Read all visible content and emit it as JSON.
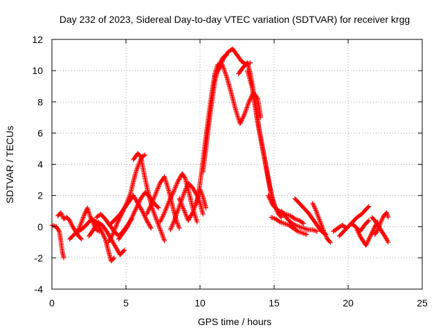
{
  "chart_data": {
    "type": "scatter",
    "title": "Day 232 of 2023, Sidereal Day-to-day VTEC variation (SDTVAR) for receiver krgg",
    "xlabel": "GPS time / hours",
    "ylabel": "SDTVAR / TECUs",
    "xlim": [
      0,
      25
    ],
    "ylim": [
      -4,
      12
    ],
    "xticks": [
      0,
      5,
      10,
      15,
      20,
      25
    ],
    "yticks": [
      -4,
      -2,
      0,
      2,
      4,
      6,
      8,
      10,
      12
    ],
    "grid": true,
    "marker": "+",
    "series_color": "#ff0000",
    "series": [
      {
        "name": "SDTVAR",
        "tracks": [
          [
            [
              0.0,
              0.1
            ],
            [
              0.3,
              0.0
            ],
            [
              0.5,
              -0.3
            ],
            [
              0.6,
              -0.9
            ],
            [
              0.7,
              -1.6
            ],
            [
              0.8,
              -2.0
            ]
          ],
          [
            [
              0.4,
              0.7
            ],
            [
              0.6,
              0.9
            ],
            [
              0.8,
              0.5
            ],
            [
              1.0,
              0.6
            ],
            [
              1.2,
              0.4
            ],
            [
              1.4,
              0.0
            ],
            [
              1.6,
              -0.3
            ],
            [
              1.8,
              -0.6
            ],
            [
              2.0,
              -0.8
            ]
          ],
          [
            [
              1.2,
              -0.8
            ],
            [
              1.5,
              -0.5
            ],
            [
              1.8,
              -0.2
            ],
            [
              2.0,
              0.3
            ],
            [
              2.2,
              0.8
            ],
            [
              2.4,
              1.2
            ],
            [
              2.6,
              0.6
            ],
            [
              2.8,
              0.2
            ],
            [
              3.0,
              -0.2
            ],
            [
              3.2,
              -0.3
            ]
          ],
          [
            [
              1.8,
              -0.3
            ],
            [
              2.1,
              -0.1
            ],
            [
              2.4,
              0.2
            ],
            [
              2.7,
              0.5
            ],
            [
              3.0,
              0.3
            ],
            [
              3.3,
              -0.2
            ],
            [
              3.6,
              -0.8
            ],
            [
              3.8,
              -1.5
            ],
            [
              4.0,
              -2.2
            ],
            [
              4.2,
              -2.0
            ]
          ],
          [
            [
              2.5,
              -0.6
            ],
            [
              2.8,
              -0.2
            ],
            [
              3.1,
              0.3
            ],
            [
              3.4,
              0.1
            ],
            [
              3.7,
              -0.3
            ],
            [
              4.0,
              -0.8
            ],
            [
              4.3,
              -1.3
            ],
            [
              4.6,
              -1.8
            ],
            [
              4.9,
              -1.5
            ]
          ],
          [
            [
              3.0,
              0.6
            ],
            [
              3.3,
              0.8
            ],
            [
              3.6,
              0.5
            ],
            [
              3.9,
              0.1
            ],
            [
              4.2,
              -0.3
            ],
            [
              4.5,
              -0.6
            ],
            [
              4.8,
              -0.3
            ],
            [
              5.1,
              0.1
            ],
            [
              5.4,
              0.5
            ]
          ],
          [
            [
              3.8,
              -1.0
            ],
            [
              4.1,
              -0.5
            ],
            [
              4.4,
              0.2
            ],
            [
              4.7,
              0.8
            ],
            [
              5.0,
              1.4
            ],
            [
              5.3,
              2.1
            ],
            [
              5.5,
              2.9
            ],
            [
              5.7,
              3.6
            ],
            [
              5.9,
              4.1
            ],
            [
              6.1,
              4.5
            ],
            [
              6.3,
              4.6
            ]
          ],
          [
            [
              4.0,
              0.2
            ],
            [
              4.3,
              0.5
            ],
            [
              4.6,
              0.8
            ],
            [
              4.9,
              1.2
            ],
            [
              5.2,
              1.6
            ],
            [
              5.5,
              2.0
            ],
            [
              5.8,
              1.5
            ],
            [
              6.1,
              1.0
            ],
            [
              6.4,
              0.4
            ],
            [
              6.7,
              -0.1
            ]
          ],
          [
            [
              4.5,
              -0.8
            ],
            [
              4.8,
              -0.4
            ],
            [
              5.1,
              0.0
            ],
            [
              5.4,
              0.6
            ],
            [
              5.7,
              1.2
            ],
            [
              6.0,
              1.8
            ],
            [
              6.3,
              2.2
            ],
            [
              6.6,
              1.9
            ],
            [
              6.9,
              1.5
            ],
            [
              7.2,
              1.2
            ]
          ],
          [
            [
              5.5,
              4.3
            ],
            [
              5.8,
              4.7
            ],
            [
              6.0,
              4.5
            ],
            [
              6.2,
              3.5
            ],
            [
              6.4,
              2.6
            ],
            [
              6.6,
              1.8
            ],
            [
              6.8,
              1.1
            ],
            [
              7.0,
              0.6
            ],
            [
              7.2,
              0.1
            ],
            [
              7.4,
              -0.4
            ],
            [
              7.6,
              -0.9
            ]
          ],
          [
            [
              6.4,
              0.8
            ],
            [
              6.7,
              1.4
            ],
            [
              7.0,
              2.1
            ],
            [
              7.3,
              2.8
            ],
            [
              7.6,
              3.2
            ],
            [
              7.8,
              2.6
            ],
            [
              8.0,
              1.9
            ],
            [
              8.2,
              1.1
            ],
            [
              8.4,
              0.4
            ],
            [
              8.6,
              -0.1
            ]
          ],
          [
            [
              7.3,
              0.3
            ],
            [
              7.6,
              0.9
            ],
            [
              7.9,
              1.6
            ],
            [
              8.2,
              2.2
            ],
            [
              8.5,
              2.9
            ],
            [
              8.8,
              3.4
            ],
            [
              9.0,
              3.1
            ],
            [
              9.2,
              2.4
            ],
            [
              9.4,
              1.6
            ],
            [
              9.6,
              0.9
            ],
            [
              9.8,
              0.3
            ]
          ],
          [
            [
              8.0,
              -0.2
            ],
            [
              8.3,
              0.5
            ],
            [
              8.6,
              1.3
            ],
            [
              8.9,
              2.1
            ],
            [
              9.2,
              2.8
            ],
            [
              9.5,
              2.5
            ],
            [
              9.8,
              2.0
            ],
            [
              10.0,
              1.5
            ],
            [
              10.2,
              0.8
            ]
          ],
          [
            [
              8.6,
              1.8
            ],
            [
              8.9,
              1.1
            ],
            [
              9.2,
              0.4
            ],
            [
              9.5,
              0.9
            ],
            [
              9.8,
              1.7
            ],
            [
              10.0,
              2.4
            ],
            [
              10.2,
              1.9
            ],
            [
              10.4,
              1.2
            ]
          ],
          [
            [
              9.8,
              1.5
            ],
            [
              10.0,
              2.8
            ],
            [
              10.2,
              4.2
            ],
            [
              10.4,
              5.8
            ],
            [
              10.6,
              7.2
            ],
            [
              10.8,
              8.6
            ],
            [
              11.0,
              9.8
            ],
            [
              11.2,
              10.4
            ],
            [
              11.4,
              10.2
            ]
          ],
          [
            [
              10.2,
              3.5
            ],
            [
              10.4,
              5.0
            ],
            [
              10.6,
              6.6
            ],
            [
              10.8,
              8.0
            ],
            [
              11.0,
              9.3
            ],
            [
              11.2,
              10.1
            ],
            [
              11.4,
              10.6
            ],
            [
              11.6,
              10.9
            ],
            [
              11.8,
              11.0
            ]
          ],
          [
            [
              11.0,
              9.6
            ],
            [
              11.3,
              10.2
            ],
            [
              11.6,
              10.8
            ],
            [
              11.9,
              11.2
            ],
            [
              12.2,
              11.4
            ],
            [
              12.5,
              11.0
            ],
            [
              12.8,
              10.6
            ],
            [
              13.1,
              10.4
            ],
            [
              13.4,
              10.5
            ]
          ],
          [
            [
              11.5,
              10.4
            ],
            [
              11.8,
              9.6
            ],
            [
              12.1,
              8.6
            ],
            [
              12.4,
              7.5
            ],
            [
              12.7,
              6.6
            ],
            [
              13.0,
              7.2
            ],
            [
              13.3,
              8.0
            ],
            [
              13.6,
              8.6
            ],
            [
              13.9,
              8.2
            ],
            [
              14.1,
              7.0
            ]
          ],
          [
            [
              12.6,
              9.8
            ],
            [
              12.9,
              10.2
            ],
            [
              13.2,
              10.5
            ],
            [
              13.4,
              9.8
            ],
            [
              13.6,
              8.7
            ],
            [
              13.8,
              7.5
            ],
            [
              14.0,
              6.2
            ],
            [
              14.2,
              5.2
            ],
            [
              14.4,
              4.2
            ],
            [
              14.6,
              3.1
            ],
            [
              14.8,
              2.1
            ],
            [
              15.0,
              1.3
            ]
          ],
          [
            [
              13.2,
              10.0
            ],
            [
              13.5,
              9.0
            ],
            [
              13.7,
              7.8
            ],
            [
              13.9,
              6.6
            ],
            [
              14.1,
              5.6
            ],
            [
              14.3,
              4.6
            ],
            [
              14.5,
              3.6
            ],
            [
              14.7,
              2.6
            ],
            [
              14.9,
              1.8
            ],
            [
              15.1,
              1.2
            ],
            [
              15.3,
              0.8
            ],
            [
              15.5,
              0.6
            ]
          ],
          [
            [
              14.6,
              2.0
            ],
            [
              14.9,
              1.4
            ],
            [
              15.2,
              1.1
            ],
            [
              15.5,
              0.9
            ],
            [
              15.8,
              0.8
            ],
            [
              16.1,
              0.7
            ],
            [
              16.4,
              0.5
            ],
            [
              16.7,
              0.4
            ],
            [
              17.0,
              0.2
            ]
          ],
          [
            [
              14.8,
              0.6
            ],
            [
              15.1,
              0.5
            ],
            [
              15.4,
              0.3
            ],
            [
              15.7,
              0.2
            ],
            [
              16.0,
              0.1
            ],
            [
              16.3,
              -0.1
            ],
            [
              16.6,
              -0.3
            ],
            [
              16.9,
              -0.4
            ],
            [
              17.2,
              -0.5
            ]
          ],
          [
            [
              15.5,
              1.0
            ],
            [
              15.8,
              0.6
            ],
            [
              16.1,
              0.3
            ],
            [
              16.4,
              0.1
            ],
            [
              16.7,
              0.0
            ],
            [
              17.0,
              -0.1
            ],
            [
              17.3,
              -0.2
            ],
            [
              17.6,
              -0.2
            ],
            [
              17.9,
              -0.3
            ]
          ],
          [
            [
              16.4,
              1.8
            ],
            [
              16.7,
              1.5
            ],
            [
              17.0,
              1.2
            ],
            [
              17.3,
              0.9
            ],
            [
              17.6,
              0.5
            ],
            [
              17.9,
              0.1
            ],
            [
              18.2,
              -0.3
            ],
            [
              18.5,
              -0.5
            ]
          ],
          [
            [
              17.6,
              1.5
            ],
            [
              17.8,
              1.1
            ],
            [
              18.0,
              0.6
            ],
            [
              18.2,
              0.1
            ],
            [
              18.4,
              -0.4
            ],
            [
              18.6,
              -0.8
            ],
            [
              18.8,
              -1.0
            ]
          ],
          [
            [
              19.0,
              -0.3
            ],
            [
              19.3,
              -0.1
            ],
            [
              19.6,
              0.1
            ],
            [
              19.9,
              -0.1
            ],
            [
              20.2,
              0.2
            ],
            [
              20.5,
              0.0
            ],
            [
              20.8,
              -0.3
            ],
            [
              21.1,
              0.1
            ],
            [
              21.4,
              0.4
            ]
          ],
          [
            [
              19.4,
              -0.6
            ],
            [
              19.7,
              -0.3
            ],
            [
              20.0,
              0.0
            ],
            [
              20.3,
              0.3
            ],
            [
              20.6,
              0.6
            ],
            [
              20.9,
              0.8
            ],
            [
              21.2,
              1.1
            ],
            [
              21.4,
              1.3
            ]
          ],
          [
            [
              20.6,
              -0.2
            ],
            [
              20.8,
              -0.6
            ],
            [
              21.0,
              -0.9
            ],
            [
              21.2,
              -1.2
            ],
            [
              21.4,
              -0.8
            ],
            [
              21.6,
              -0.4
            ],
            [
              21.8,
              0.0
            ],
            [
              22.0,
              0.3
            ]
          ],
          [
            [
              21.6,
              0.6
            ],
            [
              21.8,
              0.4
            ],
            [
              22.0,
              0.1
            ],
            [
              22.2,
              -0.2
            ],
            [
              22.4,
              -0.5
            ],
            [
              22.6,
              -0.8
            ],
            [
              22.7,
              -1.0
            ]
          ],
          [
            [
              21.8,
              -0.5
            ],
            [
              22.0,
              -0.2
            ],
            [
              22.2,
              0.3
            ],
            [
              22.4,
              0.7
            ],
            [
              22.6,
              0.9
            ],
            [
              22.7,
              0.6
            ]
          ]
        ]
      }
    ]
  }
}
